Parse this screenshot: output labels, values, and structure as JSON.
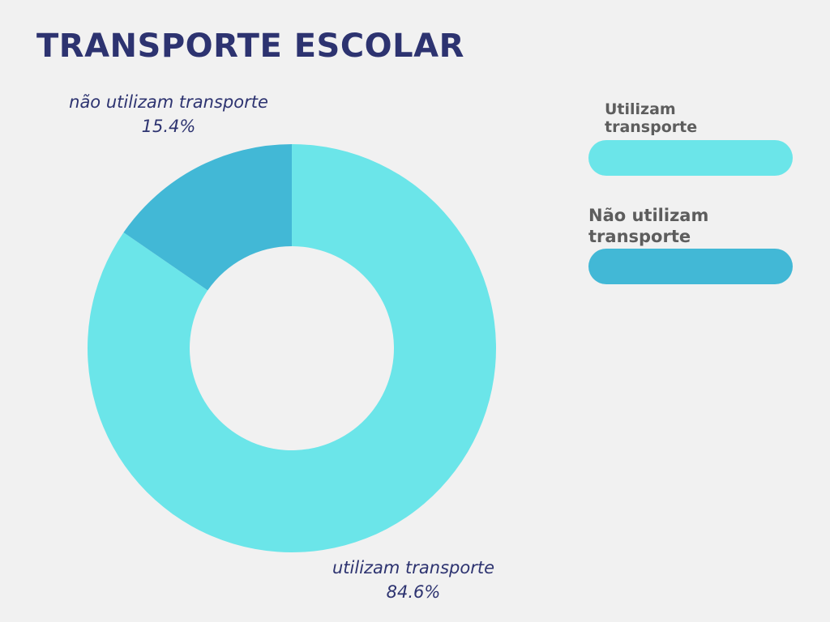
{
  "title": "TRANSPORTE ESCOLAR",
  "chart_data": {
    "type": "donut",
    "title": "TRANSPORTE ESCOLAR",
    "categories": [
      "utilizam transporte",
      "não utilizam transporte"
    ],
    "values": [
      84.6,
      15.4
    ],
    "unit": "%",
    "value_labels": [
      "84.6%",
      "15.4%"
    ],
    "colors": [
      "#6be5e9",
      "#42b8d6"
    ],
    "legend": {
      "placement": "right",
      "entries": [
        "Utilizam\ntransporte",
        "Não utilizam\ntransporte"
      ]
    }
  }
}
